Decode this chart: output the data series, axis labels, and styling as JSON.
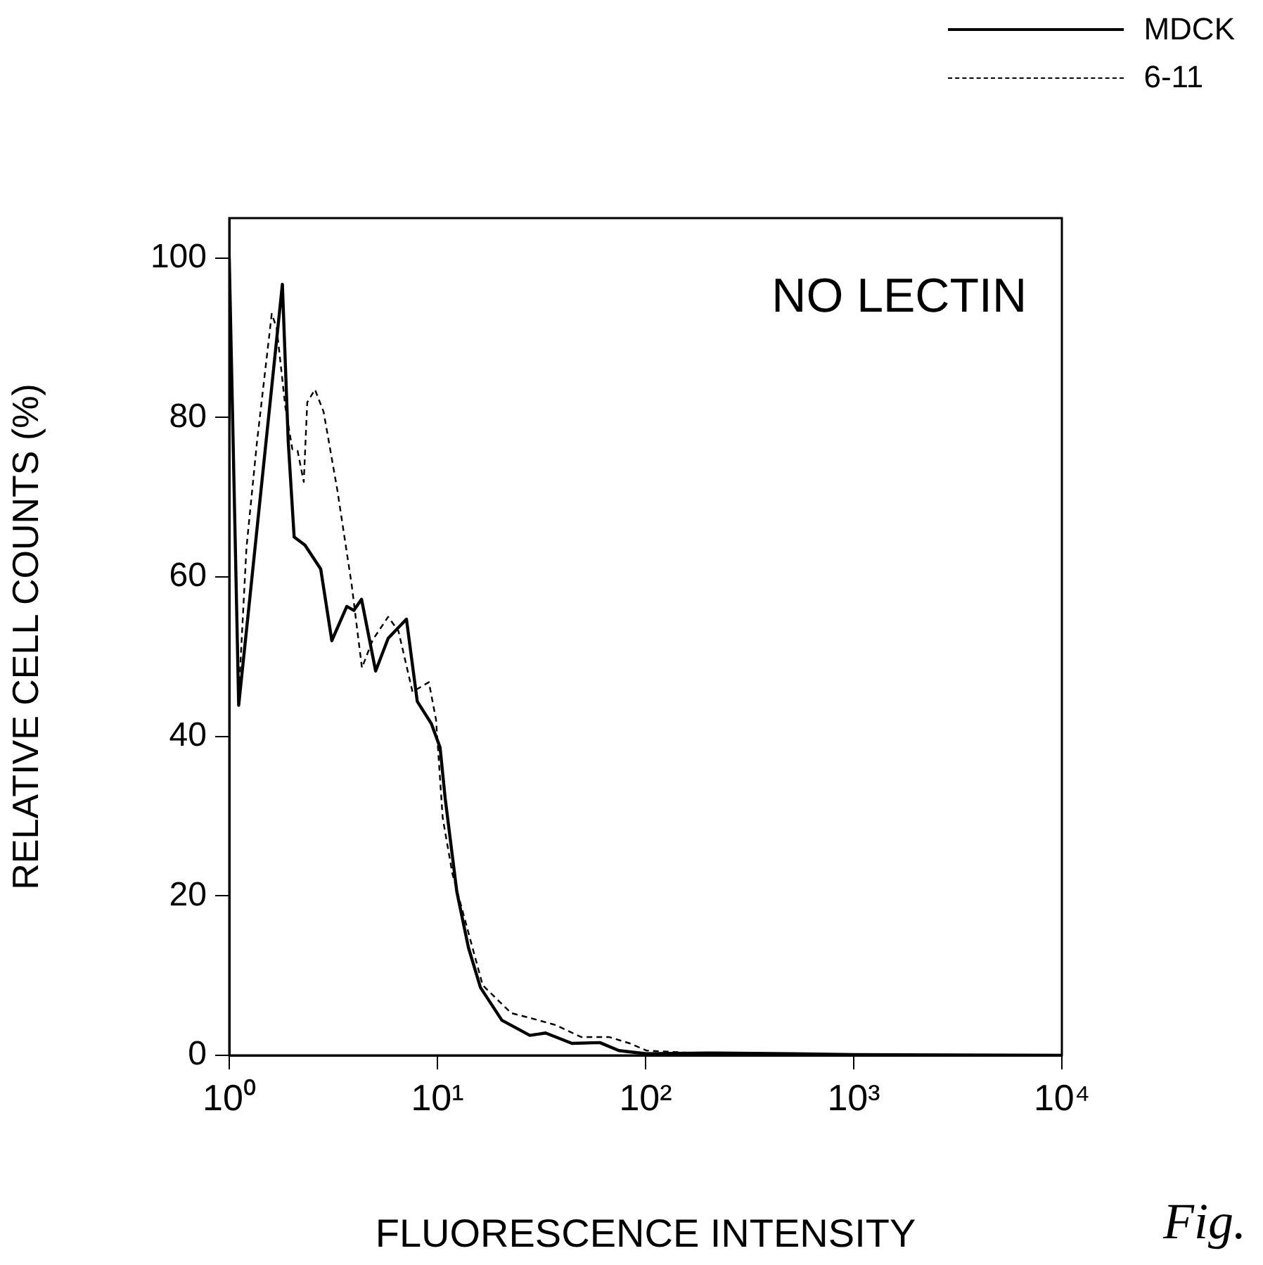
{
  "chart_data": {
    "type": "line",
    "xlabel": "FLUORESCENCE INTENSITY",
    "ylabel": "RELATIVE CELL COUNTS (%)",
    "log": "x",
    "xlim": [
      1,
      10000
    ],
    "ylim": [
      0,
      105
    ],
    "xticks": [
      {
        "value": 1,
        "label": "10⁰"
      },
      {
        "value": 10,
        "label": "10¹"
      },
      {
        "value": 100,
        "label": "10²"
      },
      {
        "value": 1000,
        "label": "10³"
      },
      {
        "value": 10000,
        "label": "10⁴"
      }
    ],
    "yticks": [
      0,
      20,
      40,
      60,
      80,
      100
    ],
    "legend": "top right",
    "marker": "none",
    "annotations": [
      "NO LECTIN",
      "Fig."
    ],
    "series": [
      {
        "name": "MDCK",
        "color": "#000000",
        "line_style": "solid",
        "x": [
          1,
          1.11,
          1.8,
          1.92,
          2.05,
          2.31,
          2.75,
          3.11,
          3.67,
          3.97,
          4.32,
          5.05,
          5.8,
          7.1,
          8.0,
          9.35,
          10.3,
          10.9,
          12.4,
          14.1,
          16.1,
          20.4,
          27.8,
          33.1,
          44.3,
          60.3,
          74.5,
          101,
          200,
          500,
          1000,
          10000
        ],
        "values": [
          100,
          43.9,
          96.7,
          77,
          65,
          64,
          61,
          52,
          56.3,
          55.8,
          57.2,
          48.2,
          52.3,
          54.7,
          44.4,
          41.6,
          38.6,
          32.2,
          20.5,
          13.5,
          8.5,
          4.4,
          2.5,
          2.8,
          1.5,
          1.6,
          0.6,
          0.2,
          0.3,
          0.2,
          0.1,
          0
        ]
      },
      {
        "name": "6-11",
        "color": "#000000",
        "line_style": "dashed",
        "x": [
          1,
          1.11,
          1.21,
          1.36,
          1.6,
          1.69,
          1.86,
          2.01,
          2.13,
          2.28,
          2.37,
          2.58,
          2.84,
          3.31,
          3.87,
          4.34,
          4.89,
          5.8,
          6.5,
          7.59,
          9.1,
          9.85,
          10.6,
          11.8,
          16.5,
          22.6,
          27.8,
          37,
          49,
          66.7,
          84,
          101,
          200,
          1000,
          10000
        ],
        "values": [
          100,
          45,
          63.7,
          77,
          93,
          91.2,
          81.3,
          76,
          75.8,
          71.9,
          81.9,
          83.5,
          80.7,
          70.8,
          59.1,
          48.6,
          52.1,
          55,
          53.2,
          45.6,
          46.8,
          42.1,
          29.8,
          22.8,
          8.8,
          5.3,
          4.7,
          3.8,
          2.3,
          2.3,
          1.5,
          0.6,
          0.2,
          0.1,
          0
        ]
      }
    ]
  }
}
